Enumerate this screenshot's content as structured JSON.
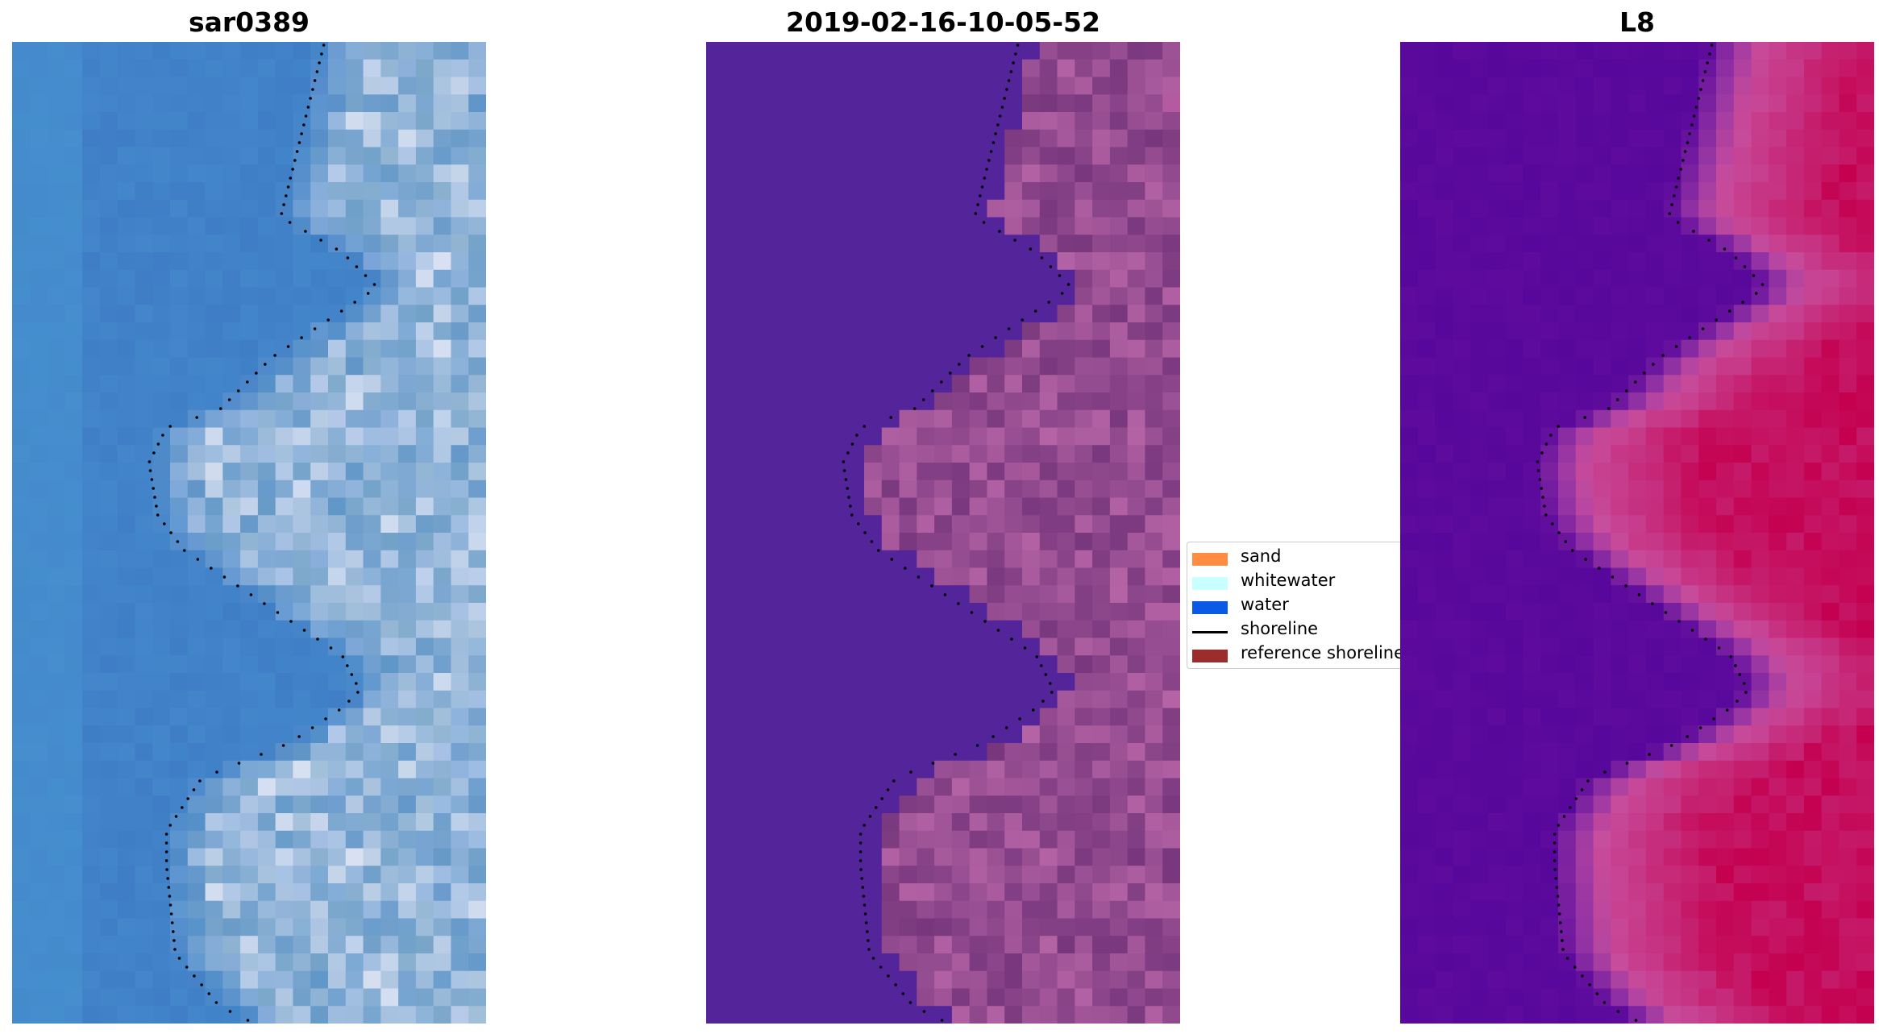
{
  "panels": [
    {
      "title": "sar0389",
      "colormap": "rgb-natural"
    },
    {
      "title": "2019-02-16-10-05-52",
      "colormap": "classified"
    },
    {
      "title": "L8",
      "colormap": "mndwi-plasma"
    }
  ],
  "legend": {
    "items": [
      {
        "label": "sand",
        "color": "#ff8c40",
        "kind": "patch"
      },
      {
        "label": "whitewater",
        "color": "#c8ffff",
        "kind": "patch"
      },
      {
        "label": "water",
        "color": "#0a5ae6",
        "kind": "patch"
      },
      {
        "label": "shoreline",
        "color": "#000000",
        "kind": "line"
      },
      {
        "label": "reference shoreline",
        "color": "#9b2d2d",
        "kind": "patch"
      }
    ]
  },
  "colors": {
    "water_rgb": "#3f7ec6",
    "water_class": "#54249a",
    "plasma_low": "#57079c",
    "plasma_high": "#c4004f"
  }
}
